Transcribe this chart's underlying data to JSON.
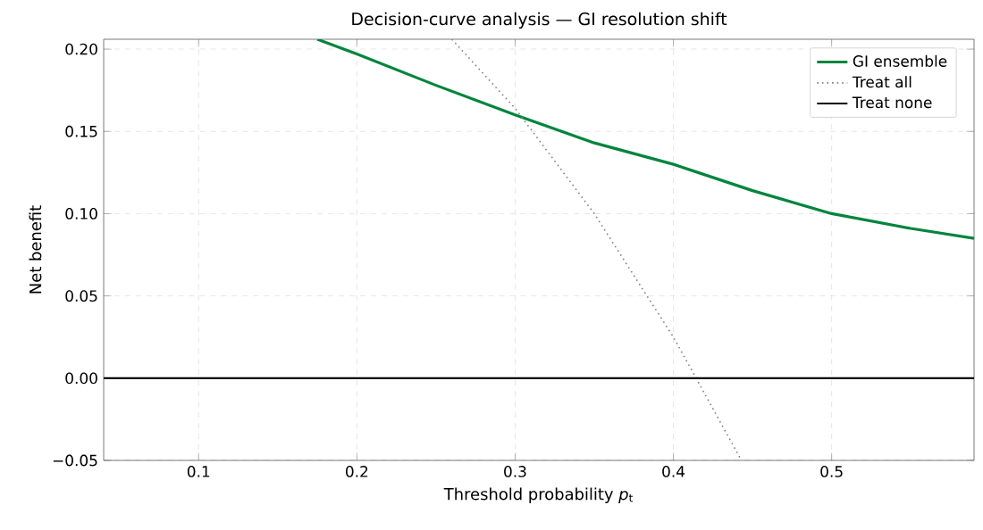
{
  "chart_data": {
    "type": "line",
    "title": "Decision-curve analysis — GI resolution shift",
    "xlabel": "Threshold probability *p*$_{t}$",
    "ylabel": "Net benefit",
    "xlim": [
      0.04,
      0.59
    ],
    "ylim": [
      -0.05,
      0.206
    ],
    "xticks": [
      0.1,
      0.2,
      0.3,
      0.4,
      0.5
    ],
    "yticks": [
      {
        "value": -0.05,
        "label": "−0.05"
      },
      {
        "value": 0,
        "label": "0.00"
      },
      {
        "value": 0.05,
        "label": "0.05"
      },
      {
        "value": 0.1,
        "label": "0.10"
      },
      {
        "value": 0.15,
        "label": "0.15"
      },
      {
        "value": 0.2,
        "label": "0.20"
      }
    ],
    "grid": true,
    "legend": "top right",
    "series": [
      {
        "name": "GI ensemble",
        "color": "#00843d",
        "line_style": "solid",
        "x": [
          0.175,
          0.2,
          0.25,
          0.3,
          0.35,
          0.4,
          0.45,
          0.5,
          0.55,
          0.59
        ],
        "values": [
          0.206,
          0.197,
          0.178,
          0.16,
          0.143,
          0.13,
          0.114,
          0.1,
          0.091,
          0.085
        ]
      },
      {
        "name": "Treat all",
        "color": "#808080",
        "line_style": "dotted",
        "x": [
          0.26,
          0.3,
          0.35,
          0.4,
          0.443
        ],
        "values": [
          0.206,
          0.164,
          0.1,
          0.025,
          -0.05
        ]
      },
      {
        "name": "Treat none",
        "color": "#000000",
        "line_style": "solid",
        "x": [
          0.04,
          0.59
        ],
        "values": [
          0,
          0
        ]
      }
    ]
  }
}
